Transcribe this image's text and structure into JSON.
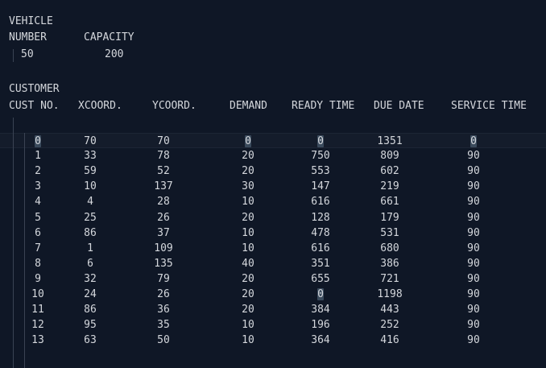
{
  "vehicle": {
    "section_label": "VEHICLE",
    "number_header": "NUMBER",
    "capacity_header": "CAPACITY",
    "number_value": "50",
    "capacity_value": "200"
  },
  "customer": {
    "section_label": "CUSTOMER",
    "headers": {
      "cust_no": "CUST NO.",
      "xcoord": "XCOORD.",
      "ycoord": "YCOORD.",
      "demand": "DEMAND",
      "ready_time": "READY TIME",
      "due_date": "DUE DATE",
      "service_time": "SERVICE TIME"
    },
    "rows": [
      [
        "0",
        "70",
        "70",
        "0",
        "0",
        "1351",
        "0"
      ],
      [
        "1",
        "33",
        "78",
        "20",
        "750",
        "809",
        "90"
      ],
      [
        "2",
        "59",
        "52",
        "20",
        "553",
        "602",
        "90"
      ],
      [
        "3",
        "10",
        "137",
        "30",
        "147",
        "219",
        "90"
      ],
      [
        "4",
        "4",
        "28",
        "10",
        "616",
        "661",
        "90"
      ],
      [
        "5",
        "25",
        "26",
        "20",
        "128",
        "179",
        "90"
      ],
      [
        "6",
        "86",
        "37",
        "10",
        "478",
        "531",
        "90"
      ],
      [
        "7",
        "1",
        "109",
        "10",
        "616",
        "680",
        "90"
      ],
      [
        "8",
        "6",
        "135",
        "40",
        "351",
        "386",
        "90"
      ],
      [
        "9",
        "32",
        "79",
        "20",
        "655",
        "721",
        "90"
      ],
      [
        "10",
        "24",
        "26",
        "20",
        "0",
        "1198",
        "90"
      ],
      [
        "11",
        "86",
        "36",
        "20",
        "384",
        "443",
        "90"
      ],
      [
        "12",
        "95",
        "35",
        "10",
        "196",
        "252",
        "90"
      ],
      [
        "13",
        "63",
        "50",
        "10",
        "364",
        "416",
        "90"
      ]
    ],
    "highlighted_zero_cells": [
      [
        0,
        0
      ],
      [
        0,
        3
      ],
      [
        0,
        4
      ],
      [
        0,
        6
      ],
      [
        10,
        4
      ]
    ]
  },
  "colors": {
    "background": "#0f1726",
    "text": "#d4d7dc",
    "current_line": "#141c2b",
    "zero_highlight": "#3a4a5c",
    "indent_guide": "#3a4353"
  }
}
